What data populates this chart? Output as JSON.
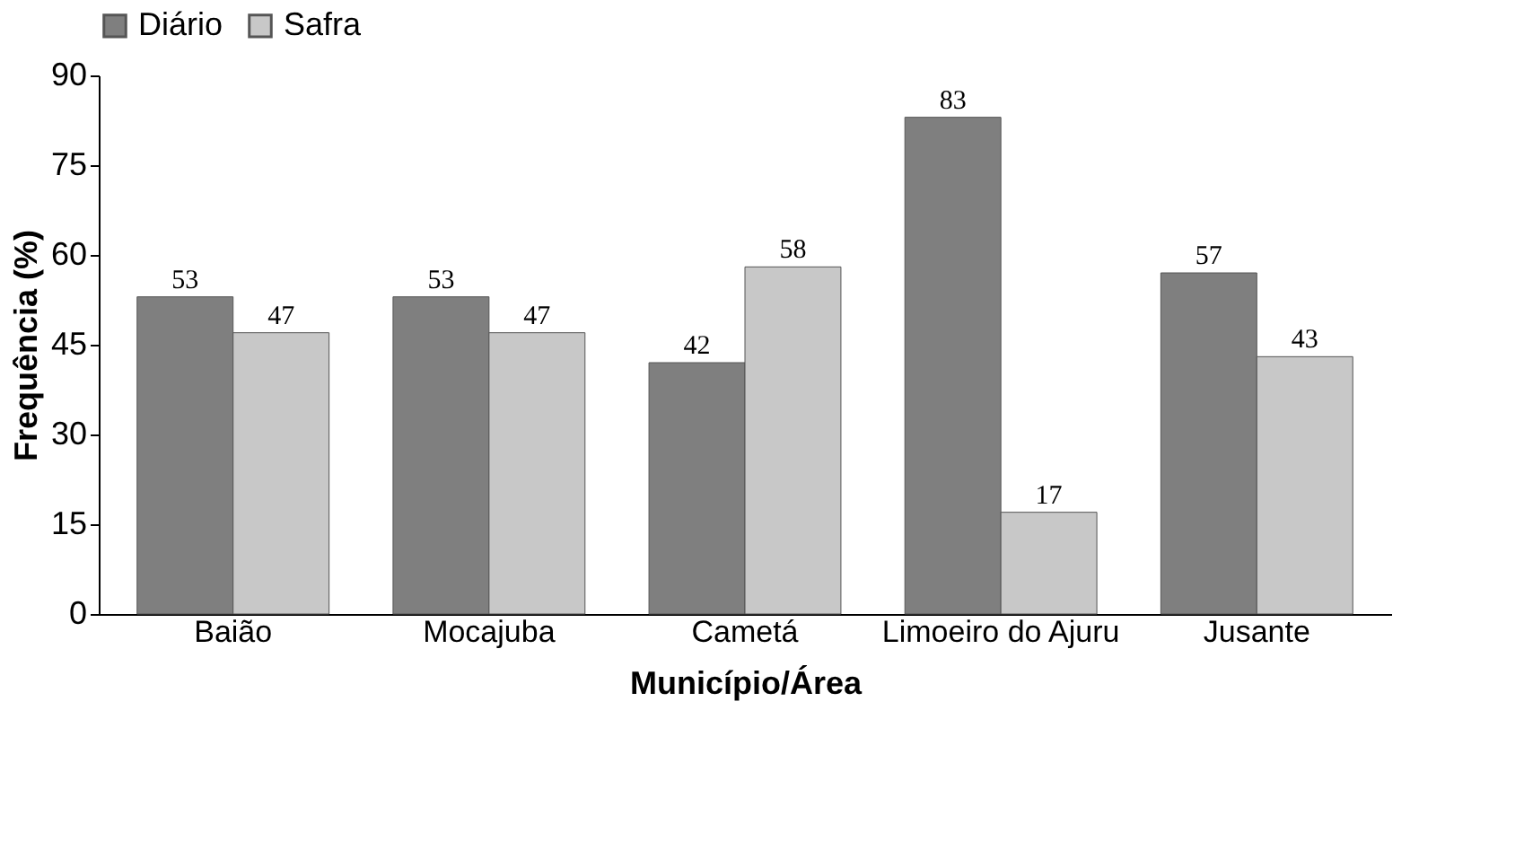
{
  "chart_data": {
    "type": "bar",
    "xlabel": "Município/Área",
    "ylabel": "Frequência (%)",
    "categories": [
      "Baião",
      "Mocajuba",
      "Cametá",
      "Limoeiro do Ajuru",
      "Jusante"
    ],
    "series": [
      {
        "name": "Diário",
        "color": "#7f7f7f",
        "values": [
          53,
          53,
          42,
          83,
          57
        ]
      },
      {
        "name": "Safra",
        "color": "#c8c8c8",
        "values": [
          47,
          47,
          58,
          17,
          43
        ]
      }
    ],
    "ylim": [
      0,
      90
    ],
    "yticks": [
      0,
      15,
      30,
      45,
      60,
      75,
      90
    ],
    "data_labels": true,
    "legend": "top",
    "grid": false
  }
}
